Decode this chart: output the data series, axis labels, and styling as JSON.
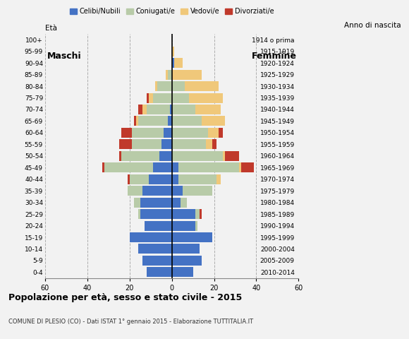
{
  "age_groups": [
    "0-4",
    "5-9",
    "10-14",
    "15-19",
    "20-24",
    "25-29",
    "30-34",
    "35-39",
    "40-44",
    "45-49",
    "50-54",
    "55-59",
    "60-64",
    "65-69",
    "70-74",
    "75-79",
    "80-84",
    "85-89",
    "90-94",
    "95-99",
    "100+"
  ],
  "birth_years": [
    "2010-2014",
    "2005-2009",
    "2000-2004",
    "1995-1999",
    "1990-1994",
    "1985-1989",
    "1980-1984",
    "1975-1979",
    "1970-1974",
    "1965-1969",
    "1960-1964",
    "1955-1959",
    "1950-1954",
    "1945-1949",
    "1940-1944",
    "1935-1939",
    "1930-1934",
    "1925-1929",
    "1920-1924",
    "1915-1919",
    "1914 o prima"
  ],
  "males": {
    "celibi": [
      12,
      14,
      16,
      20,
      13,
      15,
      15,
      14,
      11,
      9,
      6,
      5,
      4,
      2,
      1,
      0,
      0,
      0,
      0,
      0,
      0
    ],
    "coniugati": [
      0,
      0,
      0,
      0,
      0,
      1,
      3,
      7,
      9,
      23,
      18,
      14,
      15,
      14,
      11,
      9,
      7,
      2,
      0,
      0,
      0
    ],
    "vedovi": [
      0,
      0,
      0,
      0,
      0,
      0,
      0,
      0,
      0,
      0,
      0,
      0,
      0,
      1,
      2,
      2,
      1,
      1,
      0,
      0,
      0
    ],
    "divorziati": [
      0,
      0,
      0,
      0,
      0,
      0,
      0,
      0,
      1,
      1,
      1,
      6,
      5,
      1,
      2,
      1,
      0,
      0,
      0,
      0,
      0
    ]
  },
  "females": {
    "nubili": [
      10,
      14,
      13,
      19,
      11,
      11,
      4,
      5,
      3,
      3,
      0,
      0,
      0,
      0,
      0,
      0,
      0,
      0,
      1,
      0,
      0
    ],
    "coniugate": [
      0,
      0,
      0,
      0,
      1,
      2,
      3,
      14,
      18,
      29,
      24,
      16,
      17,
      14,
      11,
      8,
      6,
      0,
      0,
      0,
      0
    ],
    "vedove": [
      0,
      0,
      0,
      0,
      0,
      0,
      0,
      0,
      2,
      1,
      1,
      3,
      5,
      11,
      12,
      16,
      16,
      14,
      4,
      1,
      0
    ],
    "divorziate": [
      0,
      0,
      0,
      0,
      0,
      1,
      0,
      0,
      0,
      6,
      7,
      2,
      2,
      0,
      0,
      0,
      0,
      0,
      0,
      0,
      0
    ]
  },
  "colors": {
    "celibi": "#4472c4",
    "coniugati": "#b8cba8",
    "vedovi": "#f0c87a",
    "divorziati": "#c0392b"
  },
  "title": "Popolazione per età, sesso e stato civile - 2015",
  "subtitle": "COMUNE DI PLESIO (CO) - Dati ISTAT 1° gennaio 2015 - Elaborazione TUTTITALIA.IT",
  "xlabel_left": "Maschi",
  "xlabel_right": "Femmine",
  "ylabel_left": "Età",
  "ylabel_right": "Anno di nascita",
  "xlim": 60,
  "legend_labels": [
    "Celibi/Nubili",
    "Coniugati/e",
    "Vedovi/e",
    "Divorziati/e"
  ],
  "bg_color": "#f2f2f2"
}
